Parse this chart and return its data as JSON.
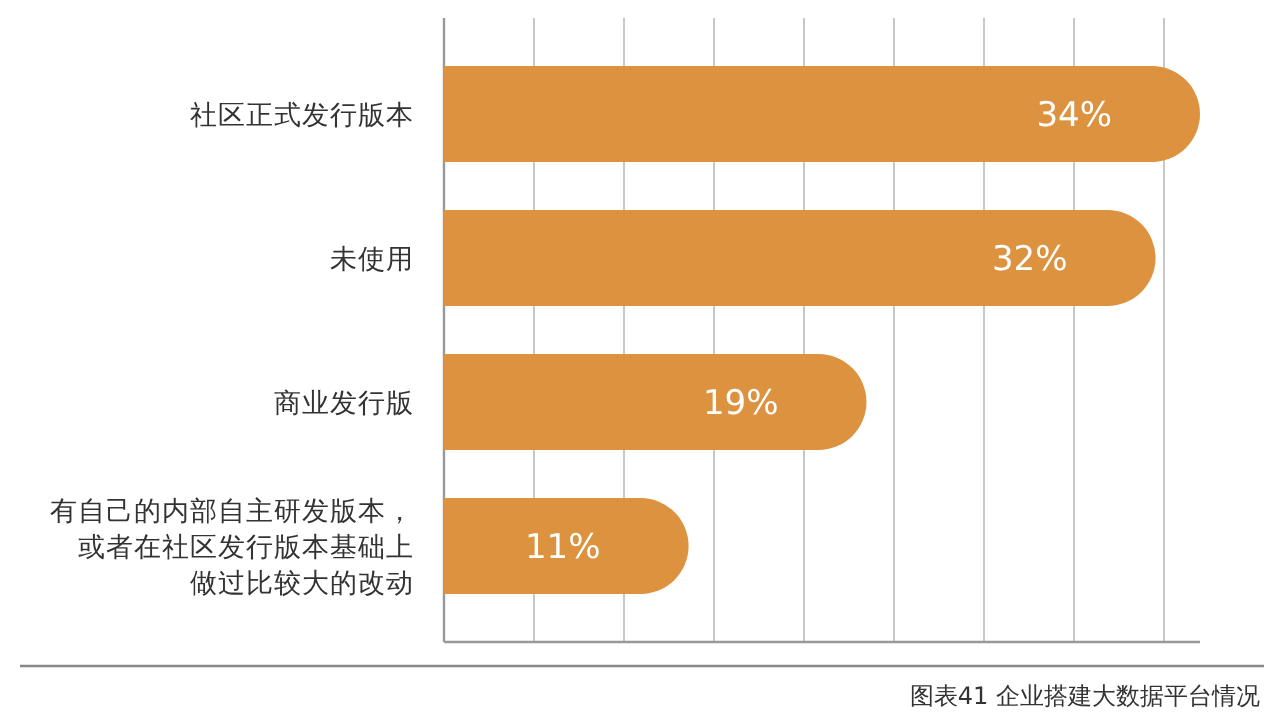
{
  "chart_data": {
    "type": "bar",
    "orientation": "horizontal",
    "categories": [
      "社区正式发行版本",
      "未使用",
      "商业发行版",
      "有自己的内部自主研发版本，或者在社区发行版本基础上做过比较大的改动"
    ],
    "values": [
      34,
      32,
      19,
      11
    ],
    "value_labels": [
      "34%",
      "32%",
      "19%",
      "11%"
    ],
    "color": "#dd9240",
    "grid": "x",
    "tick_labels": "y",
    "annotations": [
      "图表41 企业搭建大数据平台情况"
    ]
  }
}
